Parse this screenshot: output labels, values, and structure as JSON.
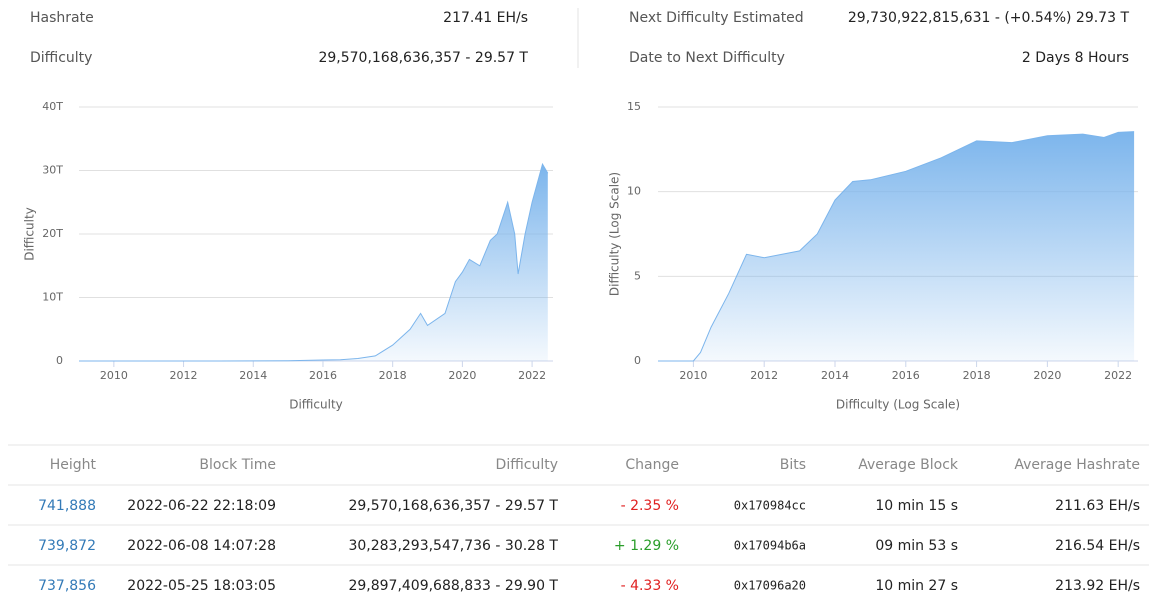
{
  "stats": [
    {
      "label": "Hashrate",
      "value": "217.41 EH/s"
    },
    {
      "label": "Difficulty",
      "value": "29,570,168,636,357 - 29.57 T"
    },
    {
      "label": "Next Difficulty Estimated",
      "value": "29,730,922,815,631 - (+0.54%) 29.73 T"
    },
    {
      "label": "Date to Next Difficulty",
      "value": "2 Days 8 Hours"
    }
  ],
  "chart_data": [
    {
      "type": "area",
      "x_label": "Difficulty",
      "y_label": "Difficulty",
      "color": "#7cb5ec",
      "x": [
        2009,
        2010,
        2011,
        2012,
        2013,
        2014,
        2015,
        2016,
        2016.5,
        2017,
        2017.5,
        2018,
        2018.5,
        2018.8,
        2019,
        2019.5,
        2019.8,
        2020,
        2020.2,
        2020.5,
        2020.8,
        2021,
        2021.3,
        2021.5,
        2021.6,
        2021.8,
        2022,
        2022.3,
        2022.45
      ],
      "values": [
        0,
        0,
        0,
        0,
        0,
        0.02,
        0.05,
        0.15,
        0.2,
        0.4,
        0.8,
        2.5,
        5,
        7.5,
        5.6,
        7.5,
        12.5,
        14,
        16,
        15,
        19,
        20,
        25,
        20,
        13.7,
        20,
        25,
        31,
        29.57
      ],
      "xlim": [
        2009,
        2022.6
      ],
      "ylim": [
        0,
        40
      ],
      "xticks": [
        2010,
        2012,
        2014,
        2016,
        2018,
        2020,
        2022
      ],
      "yticks": [
        0,
        {
          "value": 10,
          "label": "10T"
        },
        {
          "value": 20,
          "label": "20T"
        },
        {
          "value": 30,
          "label": "30T"
        },
        {
          "value": 40,
          "label": "40T"
        }
      ],
      "grid": true
    },
    {
      "type": "area",
      "x_label": "Difficulty (Log Scale)",
      "y_label": "Difficulty (Log Scale)",
      "color": "#7cb5ec",
      "x": [
        2009,
        2010,
        2010.2,
        2010.5,
        2011,
        2011.5,
        2012,
        2013,
        2013.5,
        2014,
        2014.5,
        2015,
        2016,
        2017,
        2018,
        2019,
        2020,
        2021,
        2021.6,
        2022,
        2022.45
      ],
      "values": [
        0,
        0,
        0.5,
        2,
        4,
        6.3,
        6.1,
        6.5,
        7.5,
        9.5,
        10.6,
        10.7,
        11.2,
        12,
        13,
        12.9,
        13.3,
        13.4,
        13.2,
        13.5,
        13.55
      ],
      "xlim": [
        2009,
        2022.56
      ],
      "ylim": [
        0,
        15
      ],
      "xticks": [
        2010,
        2012,
        2014,
        2016,
        2018,
        2020,
        2022
      ],
      "yticks": [
        0,
        5,
        10,
        15
      ],
      "grid": true
    }
  ],
  "table": {
    "headers": [
      "Height",
      "Block Time",
      "Difficulty",
      "Change",
      "Bits",
      "Average Block",
      "Average Hashrate"
    ],
    "rows": [
      [
        "741,888",
        "2022-06-22 22:18:09",
        "29,570,168,636,357 - 29.57 T",
        "- 2.35 %",
        "0x170984cc",
        "10 min 15 s",
        "211.63 EH/s"
      ],
      [
        "739,872",
        "2022-06-08 14:07:28",
        "30,283,293,547,736 - 30.28 T",
        "+ 1.29 %",
        "0x17094b6a",
        "09 min 53 s",
        "216.54 EH/s"
      ],
      [
        "737,856",
        "2022-05-25 18:03:05",
        "29,897,409,688,833 - 29.90 T",
        "- 4.33 %",
        "0x17096a20",
        "10 min 27 s",
        "213.92 EH/s"
      ]
    ]
  }
}
